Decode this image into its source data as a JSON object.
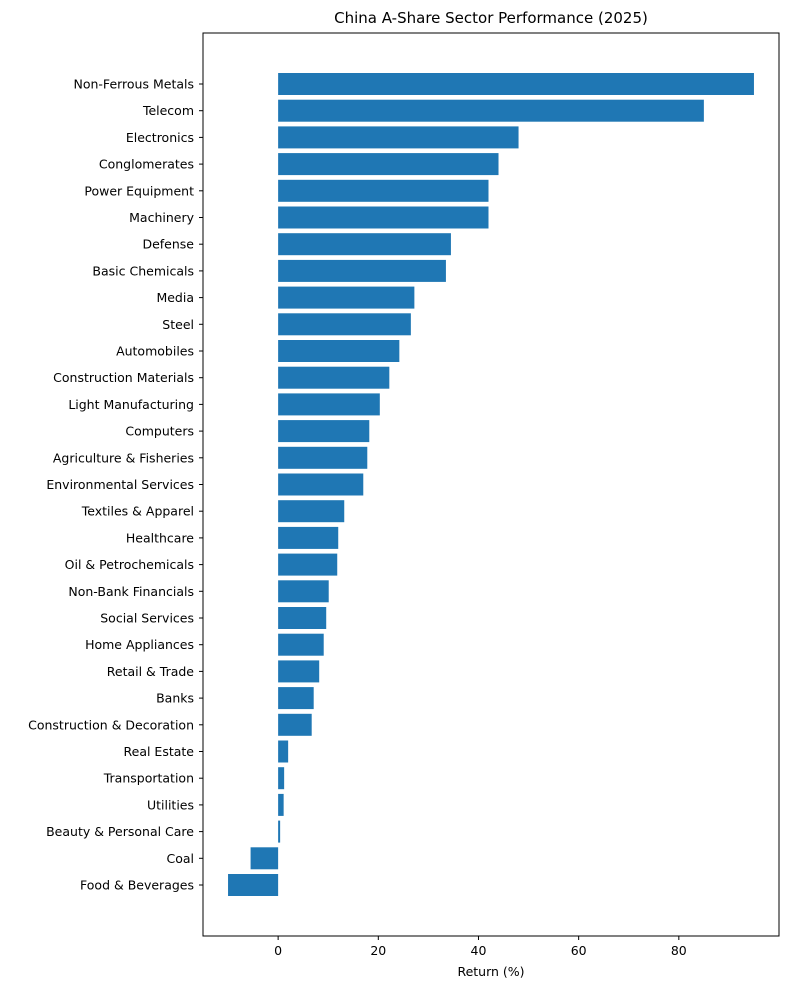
{
  "chart_data": {
    "type": "bar",
    "orientation": "horizontal",
    "title": "China A-Share Sector Performance (2025)",
    "xlabel": "Return (%)",
    "ylabel": "",
    "xlim": [
      -15,
      100
    ],
    "xticks": [
      0,
      20,
      40,
      60,
      80
    ],
    "grid": false,
    "bar_color": "#1f77b4",
    "categories": [
      "Non-Ferrous Metals",
      "Telecom",
      "Electronics",
      "Conglomerates",
      "Power Equipment",
      "Machinery",
      "Defense",
      "Basic Chemicals",
      "Media",
      "Steel",
      "Automobiles",
      "Construction Materials",
      "Light Manufacturing",
      "Computers",
      "Agriculture & Fisheries",
      "Environmental Services",
      "Textiles & Apparel",
      "Healthcare",
      "Oil & Petrochemicals",
      "Non-Bank Financials",
      "Social Services",
      "Home Appliances",
      "Retail & Trade",
      "Banks",
      "Construction & Decoration",
      "Real Estate",
      "Transportation",
      "Utilities",
      "Beauty & Personal Care",
      "Coal",
      "Food & Beverages"
    ],
    "values": [
      95,
      85,
      48,
      44,
      42,
      42,
      34.5,
      33.5,
      27.2,
      26.5,
      24.2,
      22.2,
      20.3,
      18.2,
      17.8,
      17,
      13.2,
      12,
      11.8,
      10.1,
      9.6,
      9.1,
      8.2,
      7.1,
      6.7,
      2,
      1.2,
      1.1,
      0.4,
      -5.5,
      -10
    ]
  }
}
